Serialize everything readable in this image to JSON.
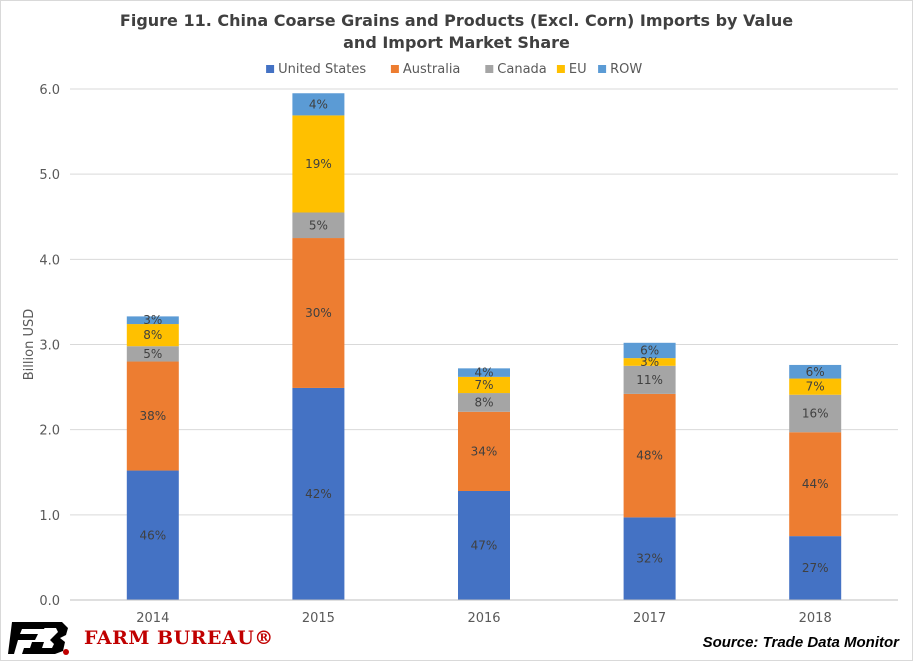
{
  "chart_data": {
    "type": "bar",
    "stacked": true,
    "title": "Figure 11. China Coarse Grains and Products (Excl. Corn) Imports by Value and Import Market Share",
    "title_lines": [
      "Figure 11. China Coarse Grains and Products (Excl. Corn) Imports by Value",
      "and Import Market Share"
    ],
    "ylabel": "Billion USD",
    "xlabel": "",
    "ylim": [
      0,
      6.0
    ],
    "yticks": [
      "0.0",
      "1.0",
      "2.0",
      "3.0",
      "4.0",
      "5.0",
      "6.0"
    ],
    "categories": [
      "2014",
      "2015",
      "2016",
      "2017",
      "2018"
    ],
    "legend_position": "top",
    "grid": true,
    "series": [
      {
        "name": "United States",
        "color": "#4472c4",
        "values": [
          1.52,
          2.49,
          1.28,
          0.97,
          0.75
        ],
        "labels": [
          "46%",
          "42%",
          "47%",
          "32%",
          "27%"
        ]
      },
      {
        "name": "Australia",
        "color": "#ed7d31",
        "values": [
          1.28,
          1.76,
          0.93,
          1.45,
          1.22
        ],
        "labels": [
          "38%",
          "30%",
          "34%",
          "48%",
          "44%"
        ]
      },
      {
        "name": "Canada",
        "color": "#a5a5a5",
        "values": [
          0.18,
          0.3,
          0.22,
          0.33,
          0.44
        ],
        "labels": [
          "5%",
          "5%",
          "8%",
          "11%",
          "16%"
        ]
      },
      {
        "name": "EU",
        "color": "#ffc000",
        "values": [
          0.26,
          1.14,
          0.19,
          0.09,
          0.19
        ],
        "labels": [
          "8%",
          "19%",
          "7%",
          "3%",
          "7%"
        ]
      },
      {
        "name": "ROW",
        "color": "#5b9bd5",
        "values": [
          0.09,
          0.26,
          0.1,
          0.18,
          0.16
        ],
        "labels": [
          "3%",
          "4%",
          "4%",
          "6%",
          "6%"
        ]
      }
    ]
  },
  "footer": {
    "logo_text": "FARM BUREAU®",
    "source": "Source: Trade Data Monitor"
  }
}
